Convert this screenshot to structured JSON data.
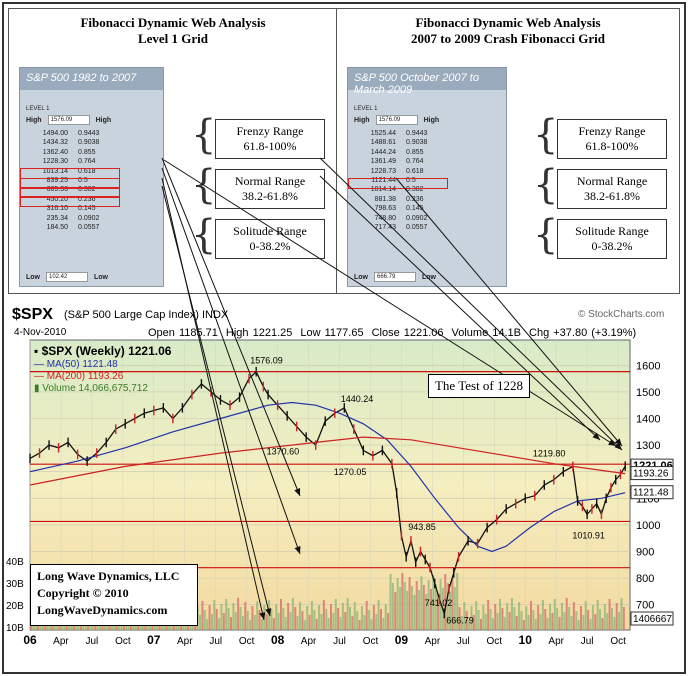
{
  "panels": [
    {
      "title1": "Fibonacci Dynamic Web Analysis",
      "title2": "Level 1 Grid",
      "grid_title": "S&P 500 1982 to 2007",
      "level": "LEVEL 1",
      "high_label": "High",
      "high_value": "1576.09",
      "high_col": "High",
      "rows": [
        [
          "1494.00",
          "0.9443"
        ],
        [
          "1434.32",
          "0.9038"
        ],
        [
          "1362.40",
          "0.855"
        ],
        [
          "1228.30",
          "0.764"
        ],
        [
          "1013.14",
          "0.618"
        ],
        [
          "839.25",
          "0.5"
        ],
        [
          "665.36",
          "0.382"
        ],
        [
          "450.20",
          "0.236"
        ],
        [
          "316.10",
          "0.145"
        ],
        [
          "235.34",
          "0.0902"
        ],
        [
          "184.50",
          "0.0557"
        ]
      ],
      "low_label": "Low",
      "low_value": "102.42",
      "low_col": "Low",
      "ranges": [
        "Frenzy Range\n61.8-100%",
        "Normal Range\n38.2-61.8%",
        "Solitude Range\n0-38.2%"
      ]
    },
    {
      "title1": "Fibonacci Dynamic Web Analysis",
      "title2": "2007 to 2009 Crash Fibonacci Grid",
      "grid_title": "S&P 500 October 2007 to March 2009",
      "level": "LEVEL 1",
      "high_label": "High",
      "high_value": "1576.09",
      "high_col": "High",
      "rows": [
        [
          "1525.44",
          "0.9443"
        ],
        [
          "1488.61",
          "0.9038"
        ],
        [
          "1444.24",
          "0.855"
        ],
        [
          "1361.49",
          "0.764"
        ],
        [
          "1228.73",
          "0.618"
        ],
        [
          "1121.44",
          "0.5"
        ],
        [
          "1014.14",
          "0.382"
        ],
        [
          "881.38",
          "0.236"
        ],
        [
          "798.63",
          "0.145"
        ],
        [
          "748.80",
          "0.0902"
        ],
        [
          "717.43",
          "0.0557"
        ]
      ],
      "low_label": "Low",
      "low_value": "666.79",
      "low_col": "Low",
      "ranges": [
        "Frenzy Range\n61.8-100%",
        "Normal Range\n38.2-61.8%",
        "Solitude Range\n0-38.2%"
      ]
    }
  ],
  "chart": {
    "symbol": "$SPX",
    "name": "(S&P 500 Large Cap Index) INDX",
    "source": "© StockCharts.com",
    "date": "4-Nov-2010",
    "open": "Open 1185.71",
    "high": "High 1221.25",
    "low": "Low 1177.65",
    "close": "Close 1221.06",
    "volume": "Volume 14.1B",
    "chg": "Chg +37.80 (+3.19%)",
    "legend": [
      "$SPX (Weekly) 1221.06",
      "MA(50) 1121.48",
      "MA(200) 1193.26",
      "Volume 14,066,675,712"
    ],
    "test_label": "The Test of 1228",
    "watermark": [
      "Long Wave Dynamics, LLC",
      "Copyright © 2010",
      "LongWaveDynamics.com"
    ],
    "price_badges": [
      "1221.06",
      "1193.26",
      "1121.48",
      "1406667"
    ],
    "vol_axis": [
      "40B",
      "30B",
      "20B",
      "10B"
    ],
    "annotations": [
      "1576.09",
      "1440.24",
      "1370.60",
      "1270.05",
      "943.85",
      "741.02",
      "666.79",
      "1219.80",
      "1010.91"
    ]
  },
  "chart_data": {
    "type": "line",
    "title": "$SPX (S&P 500 Large Cap Index) INDX",
    "x_ticks": [
      "06",
      "Apr",
      "Jul",
      "Oct",
      "07",
      "Apr",
      "Jul",
      "Oct",
      "08",
      "Apr",
      "Jul",
      "Oct",
      "09",
      "Apr",
      "Jul",
      "Oct",
      "10",
      "Apr",
      "Jul",
      "Oct"
    ],
    "y_ticks": [
      700,
      800,
      900,
      1000,
      1100,
      1200,
      1300,
      1400,
      1500,
      1600
    ],
    "ylim": [
      620,
      1650
    ],
    "horizontal_lines": [
      1576.09,
      1228.3,
      1013.14,
      839.25
    ],
    "series": [
      {
        "name": "$SPX (Weekly) 1221.06",
        "color": "#111111",
        "points": [
          [
            0,
            1250
          ],
          [
            4,
            1270
          ],
          [
            8,
            1300
          ],
          [
            12,
            1290
          ],
          [
            16,
            1310
          ],
          [
            20,
            1265
          ],
          [
            24,
            1240
          ],
          [
            28,
            1270
          ],
          [
            32,
            1310
          ],
          [
            36,
            1360
          ],
          [
            40,
            1380
          ],
          [
            44,
            1400
          ],
          [
            48,
            1420
          ],
          [
            52,
            1430
          ],
          [
            56,
            1440
          ],
          [
            60,
            1400
          ],
          [
            64,
            1440
          ],
          [
            68,
            1490
          ],
          [
            72,
            1530
          ],
          [
            76,
            1500
          ],
          [
            80,
            1470
          ],
          [
            84,
            1450
          ],
          [
            88,
            1480
          ],
          [
            92,
            1550
          ],
          [
            95,
            1576
          ],
          [
            98,
            1520
          ],
          [
            100,
            1490
          ],
          [
            104,
            1450
          ],
          [
            108,
            1410
          ],
          [
            112,
            1370
          ],
          [
            116,
            1330
          ],
          [
            120,
            1300
          ],
          [
            124,
            1390
          ],
          [
            128,
            1420
          ],
          [
            132,
            1440
          ],
          [
            136,
            1360
          ],
          [
            140,
            1280
          ],
          [
            144,
            1260
          ],
          [
            148,
            1280
          ],
          [
            152,
            1230
          ],
          [
            154,
            1120
          ],
          [
            156,
            960
          ],
          [
            158,
            880
          ],
          [
            160,
            940
          ],
          [
            162,
            860
          ],
          [
            164,
            900
          ],
          [
            166,
            870
          ],
          [
            168,
            840
          ],
          [
            170,
            780
          ],
          [
            172,
            720
          ],
          [
            174,
            667
          ],
          [
            176,
            760
          ],
          [
            178,
            820
          ],
          [
            180,
            880
          ],
          [
            184,
            940
          ],
          [
            188,
            930
          ],
          [
            192,
            990
          ],
          [
            196,
            1020
          ],
          [
            200,
            1060
          ],
          [
            204,
            1080
          ],
          [
            208,
            1100
          ],
          [
            212,
            1110
          ],
          [
            216,
            1150
          ],
          [
            220,
            1170
          ],
          [
            224,
            1200
          ],
          [
            228,
            1220
          ],
          [
            230,
            1090
          ],
          [
            232,
            1070
          ],
          [
            234,
            1040
          ],
          [
            236,
            1060
          ],
          [
            238,
            1080
          ],
          [
            240,
            1040
          ],
          [
            242,
            1100
          ],
          [
            244,
            1140
          ],
          [
            246,
            1170
          ],
          [
            248,
            1190
          ],
          [
            250,
            1221
          ]
        ]
      },
      {
        "name": "MA(50) 1121.48",
        "color": "#2233aa",
        "points": [
          [
            0,
            1200
          ],
          [
            20,
            1240
          ],
          [
            40,
            1290
          ],
          [
            60,
            1350
          ],
          [
            80,
            1400
          ],
          [
            100,
            1450
          ],
          [
            110,
            1460
          ],
          [
            120,
            1450
          ],
          [
            130,
            1420
          ],
          [
            140,
            1380
          ],
          [
            150,
            1320
          ],
          [
            160,
            1220
          ],
          [
            170,
            1100
          ],
          [
            180,
            990
          ],
          [
            188,
            920
          ],
          [
            194,
            900
          ],
          [
            200,
            920
          ],
          [
            210,
            990
          ],
          [
            220,
            1050
          ],
          [
            230,
            1090
          ],
          [
            240,
            1100
          ],
          [
            250,
            1121
          ]
        ]
      },
      {
        "name": "MA(200) 1193.26",
        "color": "#cc2222",
        "points": [
          [
            0,
            1150
          ],
          [
            40,
            1220
          ],
          [
            80,
            1270
          ],
          [
            120,
            1310
          ],
          [
            140,
            1330
          ],
          [
            160,
            1320
          ],
          [
            180,
            1290
          ],
          [
            200,
            1260
          ],
          [
            220,
            1230
          ],
          [
            240,
            1205
          ],
          [
            250,
            1193
          ]
        ]
      }
    ]
  }
}
